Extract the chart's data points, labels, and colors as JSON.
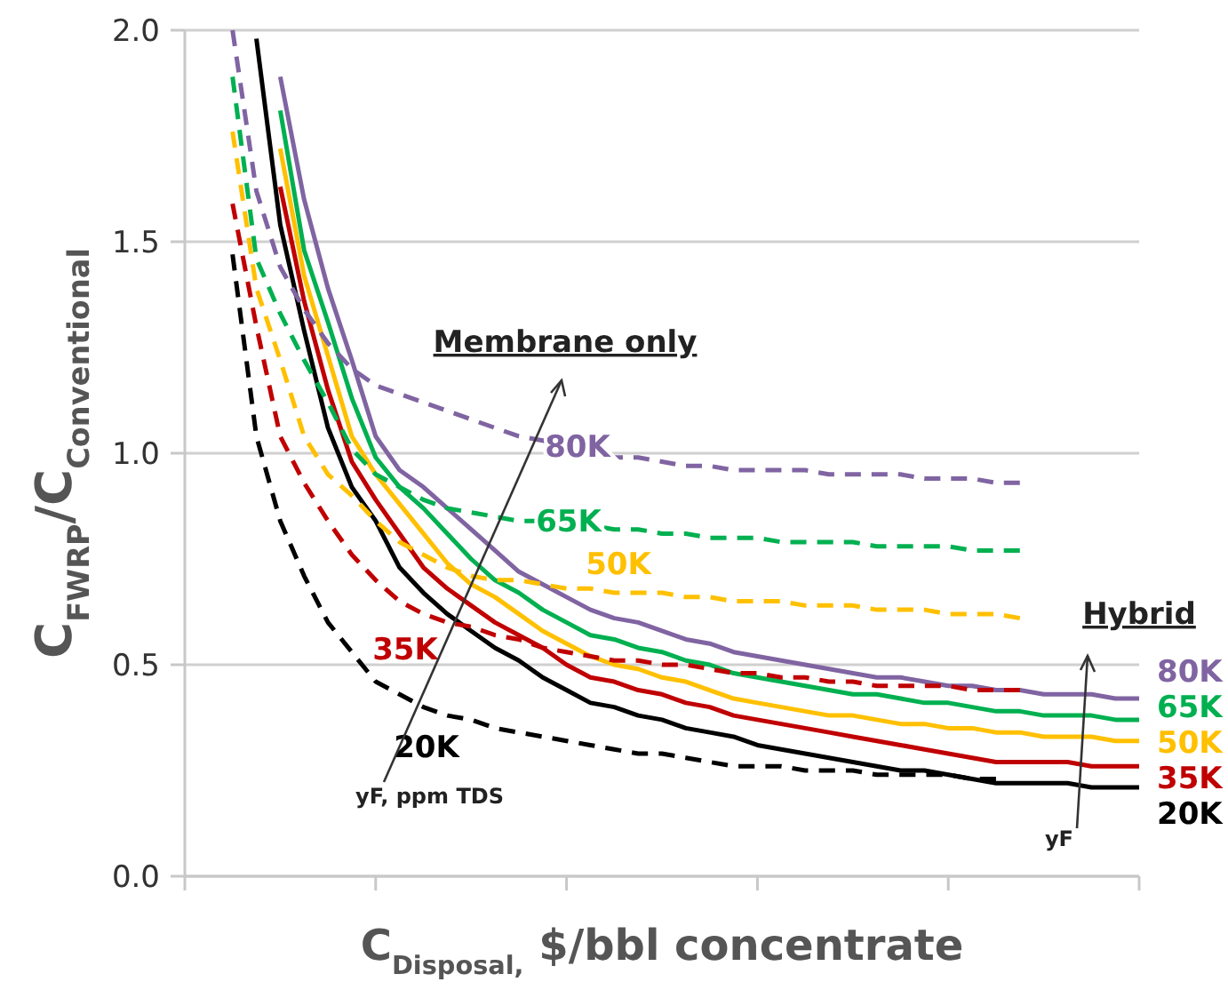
{
  "chart_data": {
    "type": "line",
    "ylabel": "C$_{FWRP}$/C$_{Conventional}$",
    "xlabel": "C$_{Disposal,}$ $/bbl concentrate",
    "categories": [
      null,
      null,
      null,
      null,
      null,
      null,
      null,
      null,
      null,
      null,
      null,
      null,
      null,
      null,
      null,
      null,
      null,
      null,
      null,
      null,
      null,
      null,
      null,
      null,
      null,
      null,
      null,
      null,
      null,
      null,
      null,
      null,
      null,
      null,
      null,
      null,
      null,
      null,
      null,
      null,
      null
    ],
    "ylim": [
      0,
      2
    ],
    "yticks": [
      {
        "value": 0,
        "label": "0.0"
      },
      {
        "value": 0.5,
        "label": "0.5"
      },
      {
        "value": 1,
        "label": "1.0"
      },
      {
        "value": 1.5,
        "label": "1.5"
      },
      {
        "value": 2,
        "label": "2.0"
      }
    ],
    "grid": "y",
    "legend": "right",
    "marker": "none",
    "series": [
      {
        "name": "80K",
        "color": "#8064a2",
        "line_style": "dashed",
        "values": [
          null,
          null,
          2.0,
          1.62,
          1.44,
          1.34,
          1.26,
          1.2,
          1.16,
          1.14,
          1.12,
          1.1,
          1.08,
          1.06,
          1.04,
          1.03,
          1.01,
          1.0,
          0.99,
          0.99,
          0.98,
          0.97,
          0.97,
          0.96,
          0.96,
          0.96,
          0.96,
          0.95,
          0.95,
          0.95,
          0.95,
          0.94,
          0.94,
          0.94,
          0.93,
          0.93,
          null,
          null,
          null,
          null,
          null
        ]
      },
      {
        "name": "65K",
        "color": "#00b050",
        "line_style": "dashed",
        "values": [
          null,
          null,
          1.89,
          1.46,
          1.33,
          1.22,
          1.12,
          1.01,
          0.95,
          0.92,
          0.89,
          0.87,
          0.86,
          0.85,
          0.84,
          0.84,
          0.83,
          0.83,
          0.82,
          0.82,
          0.81,
          0.81,
          0.8,
          0.8,
          0.8,
          0.79,
          0.79,
          0.79,
          0.79,
          0.78,
          0.78,
          0.78,
          0.78,
          0.77,
          0.77,
          0.77,
          null,
          null,
          null,
          null,
          null
        ]
      },
      {
        "name": "50K",
        "color": "#ffc000",
        "line_style": "dashed",
        "values": [
          null,
          null,
          1.76,
          1.39,
          1.22,
          1.04,
          0.95,
          0.9,
          0.84,
          0.79,
          0.76,
          0.73,
          0.71,
          0.7,
          0.7,
          0.69,
          0.68,
          0.68,
          0.67,
          0.67,
          0.67,
          0.66,
          0.66,
          0.65,
          0.65,
          0.65,
          0.64,
          0.64,
          0.64,
          0.63,
          0.63,
          0.63,
          0.62,
          0.62,
          0.62,
          0.61,
          null,
          null,
          null,
          null,
          null
        ]
      },
      {
        "name": "35K",
        "color": "#c00000",
        "line_style": "dashed",
        "values": [
          null,
          null,
          1.59,
          1.3,
          1.04,
          0.93,
          0.84,
          0.76,
          0.7,
          0.65,
          0.62,
          0.6,
          0.59,
          0.57,
          0.56,
          0.54,
          0.53,
          0.52,
          0.51,
          0.51,
          0.5,
          0.5,
          0.49,
          0.48,
          0.48,
          0.47,
          0.47,
          0.46,
          0.46,
          0.45,
          0.45,
          0.45,
          0.45,
          0.44,
          0.44,
          0.44,
          null,
          null,
          null,
          null,
          null
        ]
      },
      {
        "name": "20K",
        "color": "#000000",
        "line_style": "dashed",
        "values": [
          null,
          null,
          1.47,
          1.04,
          0.84,
          0.71,
          0.6,
          0.53,
          0.46,
          0.43,
          0.4,
          0.38,
          0.37,
          0.35,
          0.34,
          0.33,
          0.32,
          0.31,
          0.3,
          0.29,
          0.29,
          0.28,
          0.27,
          0.26,
          0.26,
          0.26,
          0.25,
          0.25,
          0.25,
          0.24,
          0.24,
          0.24,
          0.24,
          0.23,
          0.23,
          null,
          null,
          null,
          null,
          null,
          null
        ]
      },
      {
        "name": "80K",
        "color": "#8064a2",
        "line_style": "solid",
        "values": [
          null,
          null,
          null,
          null,
          1.89,
          1.6,
          1.39,
          1.22,
          1.04,
          0.96,
          0.92,
          0.87,
          0.82,
          0.77,
          0.72,
          0.69,
          0.66,
          0.63,
          0.61,
          0.6,
          0.58,
          0.56,
          0.55,
          0.53,
          0.52,
          0.51,
          0.5,
          0.49,
          0.48,
          0.47,
          0.47,
          0.46,
          0.45,
          0.45,
          0.44,
          0.44,
          0.43,
          0.43,
          0.43,
          0.42,
          0.42
        ]
      },
      {
        "name": "65K",
        "color": "#00b050",
        "line_style": "solid",
        "values": [
          null,
          null,
          null,
          null,
          1.81,
          1.48,
          1.31,
          1.13,
          0.99,
          0.92,
          0.87,
          0.81,
          0.75,
          0.7,
          0.67,
          0.63,
          0.6,
          0.57,
          0.56,
          0.54,
          0.53,
          0.51,
          0.5,
          0.48,
          0.47,
          0.46,
          0.45,
          0.44,
          0.43,
          0.43,
          0.42,
          0.41,
          0.41,
          0.4,
          0.39,
          0.39,
          0.38,
          0.38,
          0.38,
          0.37,
          0.37
        ]
      },
      {
        "name": "50K",
        "color": "#ffc000",
        "line_style": "solid",
        "values": [
          null,
          null,
          null,
          null,
          1.72,
          1.42,
          1.23,
          1.04,
          0.95,
          0.88,
          0.81,
          0.74,
          0.69,
          0.66,
          0.62,
          0.58,
          0.55,
          0.52,
          0.5,
          0.49,
          0.47,
          0.46,
          0.44,
          0.42,
          0.41,
          0.4,
          0.39,
          0.38,
          0.38,
          0.37,
          0.36,
          0.36,
          0.35,
          0.35,
          0.34,
          0.34,
          0.33,
          0.33,
          0.33,
          0.32,
          0.32
        ]
      },
      {
        "name": "35K",
        "color": "#c00000",
        "line_style": "solid",
        "values": [
          null,
          null,
          null,
          null,
          1.63,
          1.36,
          1.15,
          0.98,
          0.89,
          0.81,
          0.73,
          0.68,
          0.64,
          0.6,
          0.57,
          0.54,
          0.5,
          0.47,
          0.46,
          0.44,
          0.43,
          0.41,
          0.4,
          0.38,
          0.37,
          0.36,
          0.35,
          0.34,
          0.33,
          0.32,
          0.31,
          0.3,
          0.29,
          0.28,
          0.27,
          0.27,
          0.27,
          0.27,
          0.26,
          0.26,
          0.26
        ]
      },
      {
        "name": "20K",
        "color": "#000000",
        "line_style": "solid",
        "values": [
          null,
          null,
          null,
          1.98,
          1.54,
          1.29,
          1.06,
          0.92,
          0.84,
          0.73,
          0.67,
          0.62,
          0.58,
          0.54,
          0.51,
          0.47,
          0.44,
          0.41,
          0.4,
          0.38,
          0.37,
          0.35,
          0.34,
          0.33,
          0.31,
          0.3,
          0.29,
          0.28,
          0.27,
          0.26,
          0.25,
          0.25,
          0.24,
          0.23,
          0.22,
          0.22,
          0.22,
          0.22,
          0.21,
          0.21,
          0.21
        ]
      }
    ],
    "annotations": [
      "Membrane only",
      "Hybrid",
      "yF, ppm TDS",
      "yF"
    ]
  }
}
